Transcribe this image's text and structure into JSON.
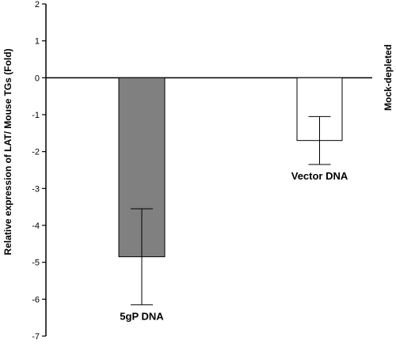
{
  "chart_data": {
    "type": "bar",
    "ylabel": "Relative expression of  LAT/ Mouse TGs (Fold)",
    "side_label": "Mock-depleted",
    "ylim": [
      -7,
      2
    ],
    "yticks": [
      2,
      1,
      0,
      -1,
      -2,
      -3,
      -4,
      -5,
      -6,
      -7
    ],
    "grid": false,
    "bars": [
      {
        "label": "5gP DNA",
        "value": -4.85,
        "err_high": -3.55,
        "err_low": -6.15,
        "color": "#808080"
      },
      {
        "label": "Vector DNA",
        "value": -1.7,
        "err_high": -1.05,
        "err_low": -2.35,
        "color": "#ffffff"
      }
    ]
  }
}
